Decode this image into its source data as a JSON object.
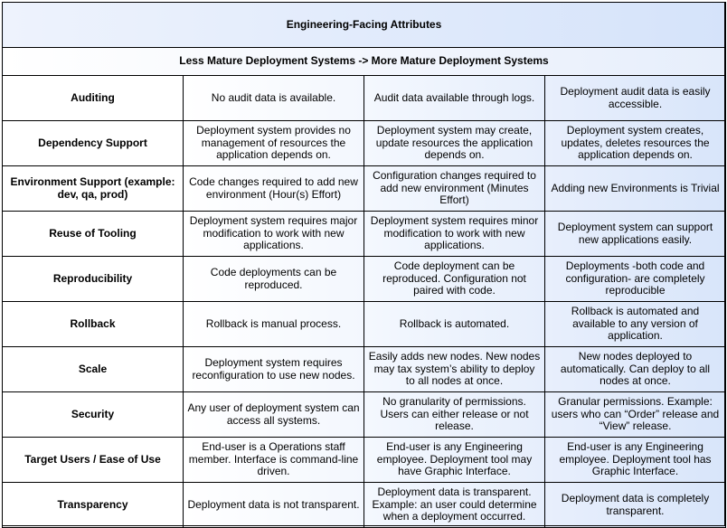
{
  "title": "Engineering-Facing Attributes",
  "subtitle": "Less Mature Deployment Systems -> More Mature Deployment Systems",
  "rows": [
    {
      "attribute": "Auditing",
      "less": "No audit data is available.",
      "mid": "Audit data available through logs.",
      "more": "Deployment audit data is easily accessible."
    },
    {
      "attribute": "Dependency Support",
      "less": "Deployment system provides no management of resources the application depends on.",
      "mid": "Deployment system may create, update resources the application depends on.",
      "more": "Deployment system creates, updates, deletes resources the application depends on."
    },
    {
      "attribute": "Environment Support (example: dev, qa, prod)",
      "less": "Code changes required to add new environment (Hour(s) Effort)",
      "mid": "Configuration changes required to add new environment (Minutes Effort)",
      "more": "Adding new Environments is Trivial"
    },
    {
      "attribute": "Reuse of Tooling",
      "less": "Deployment system requires major modification to work with new applications.",
      "mid": "Deployment system requires minor modification to work with new applications.",
      "more": "Deployment system can support new applications easily."
    },
    {
      "attribute": "Reproducibility",
      "less": "Code deployments can be reproduced.",
      "mid": "Code deployment can be reproduced. Configuration not paired with code.",
      "more": "Deployments -both code and configuration- are completely reproducible"
    },
    {
      "attribute": "Rollback",
      "less": "Rollback is manual process.",
      "mid": "Rollback is automated.",
      "more": "Rollback is automated and available to any version of application."
    },
    {
      "attribute": "Scale",
      "less": "Deployment system requires reconfiguration to use new nodes.",
      "mid": "Easily adds new nodes. New nodes may tax system’s ability to deploy to all nodes at once.",
      "more": "New nodes deployed to automatically. Can deploy to all nodes at once."
    },
    {
      "attribute": "Security",
      "less": "Any user of deployment system can access all systems.",
      "mid": "No granularity of permissions. Users can either release or not release.",
      "more": "Granular permissions. Example: users who can “Order” release and “View” release."
    },
    {
      "attribute": "Target Users / Ease of Use",
      "less": "End-user is a Operations staff member. Interface is command-line driven.",
      "mid": "End-user is any Engineering employee. Deployment tool may have Graphic Interface.",
      "more": "End-user is any Engineering employee. Deployment tool has Graphic Interface."
    },
    {
      "attribute": "Transparency",
      "less": "Deployment data is not transparent.",
      "mid": "Deployment data is transparent. Example: an user could determine when a deployment occurred.",
      "more": "Deployment data is completely transparent."
    }
  ]
}
